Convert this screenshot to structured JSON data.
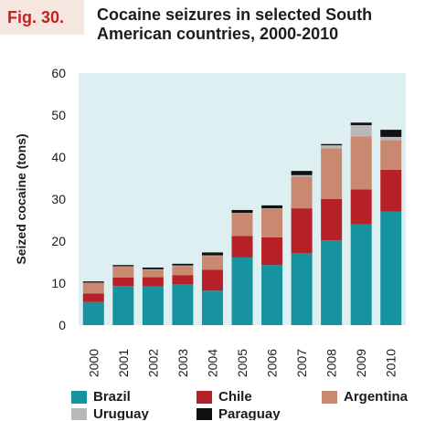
{
  "figure": {
    "tag": "Fig. 30.",
    "title": "Cocaine seizures in selected South American countries, 2000-2010"
  },
  "chart_data": {
    "type": "bar",
    "stacked": true,
    "ylabel": "Seized cocaine (tons)",
    "xlabel": "",
    "ylim": [
      0,
      60
    ],
    "yticks": [
      0,
      10,
      20,
      30,
      40,
      50,
      60
    ],
    "grid": false,
    "legend_placement": "bottom",
    "categories": [
      "2000",
      "2001",
      "2002",
      "2003",
      "2004",
      "2005",
      "2006",
      "2007",
      "2008",
      "2009",
      "2010"
    ],
    "series": [
      {
        "name": "Brazil",
        "color": "#1793a0",
        "values": [
          5.5,
          9.3,
          9.2,
          9.7,
          8.2,
          16.1,
          14.3,
          17.1,
          20.2,
          24.0,
          27.0
        ]
      },
      {
        "name": "Chile",
        "color": "#b52126",
        "values": [
          2.0,
          2.0,
          2.2,
          2.2,
          5.0,
          5.1,
          6.6,
          10.7,
          9.8,
          8.3,
          10.0
        ]
      },
      {
        "name": "Argentina",
        "color": "#c98870",
        "values": [
          2.5,
          2.6,
          1.8,
          2.2,
          3.3,
          5.4,
          6.8,
          7.6,
          12.1,
          12.6,
          7.0
        ]
      },
      {
        "name": "Uruguay",
        "color": "#b8b8b8",
        "values": [
          0.1,
          0.1,
          0.1,
          0.1,
          0.1,
          0.1,
          0.1,
          0.3,
          0.7,
          2.7,
          0.8
        ]
      },
      {
        "name": "Paraguay",
        "color": "#111111",
        "values": [
          0.3,
          0.3,
          0.4,
          0.4,
          0.7,
          0.7,
          0.7,
          1.0,
          0.3,
          0.6,
          1.7
        ]
      }
    ]
  }
}
